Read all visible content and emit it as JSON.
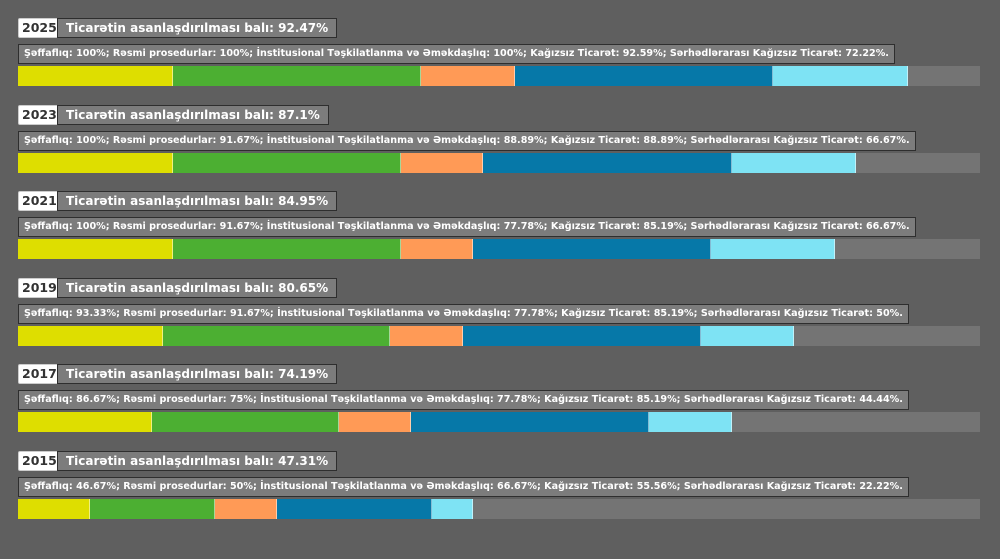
{
  "categories": [
    {
      "name": "Şəffaflıq",
      "weight": 15,
      "color": "#dede00"
    },
    {
      "name": "Rəsmi prosedurlar",
      "weight": 24,
      "color": "#4caf32"
    },
    {
      "name": "İnstitusional Təşkilatlanma və Əməkdaşlıq",
      "weight": 9,
      "color": "#ff9a56"
    },
    {
      "name": "Kağızsız Ticarət",
      "weight": 27,
      "color": "#0678a8"
    },
    {
      "name": "Sərhədlərarası Kağızsız Ticarət",
      "weight": 18,
      "color": "#7ee3f4"
    }
  ],
  "rows": [
    {
      "year": "2025",
      "title": "Ticarətin asanlaşdırılması balı: 92.47%",
      "detail": "Şəffaflıq: 100%; Rəsmi prosedurlar: 100%; İnstitusional Təşkilatlanma və Əməkdaşlıq: 100%; Kağızsız Ticarət: 92.59%; Sərhədlərarası Kağızsız Ticarət: 72.22%.",
      "values": [
        100,
        100,
        100,
        92.59,
        72.22
      ]
    },
    {
      "year": "2023",
      "title": "Ticarətin asanlaşdırılması balı: 87.1%",
      "detail": "Şəffaflıq: 100%; Rəsmi prosedurlar: 91.67%; İnstitusional Təşkilatlanma və Əməkdaşlıq: 88.89%; Kağızsız Ticarət: 88.89%; Sərhədlərarası Kağızsız Ticarət: 66.67%.",
      "values": [
        100,
        91.67,
        88.89,
        88.89,
        66.67
      ]
    },
    {
      "year": "2021",
      "title": "Ticarətin asanlaşdırılması balı: 84.95%",
      "detail": "Şəffaflıq: 100%; Rəsmi prosedurlar: 91.67%; İnstitusional Təşkilatlanma və Əməkdaşlıq: 77.78%; Kağızsız Ticarət: 85.19%; Sərhədlərarası Kağızsız Ticarət: 66.67%.",
      "values": [
        100,
        91.67,
        77.78,
        85.19,
        66.67
      ]
    },
    {
      "year": "2019",
      "title": "Ticarətin asanlaşdırılması balı: 80.65%",
      "detail": "Şəffaflıq: 93.33%; Rəsmi prosedurlar: 91.67%; İnstitusional Təşkilatlanma və Əməkdaşlıq: 77.78%; Kağızsız Ticarət: 85.19%; Sərhədlərarası Kağızsız Ticarət: 50%.",
      "values": [
        93.33,
        91.67,
        77.78,
        85.19,
        50
      ]
    },
    {
      "year": "2017",
      "title": "Ticarətin asanlaşdırılması balı: 74.19%",
      "detail": "Şəffaflıq: 86.67%; Rəsmi prosedurlar: 75%; İnstitusional Təşkilatlanma və Əməkdaşlıq: 77.78%; Kağızsız Ticarət: 85.19%; Sərhədlərarası Kağızsız Ticarət: 44.44%.",
      "values": [
        86.67,
        75,
        77.78,
        85.19,
        44.44
      ]
    },
    {
      "year": "2015",
      "title": "Ticarətin asanlaşdırılması balı: 47.31%",
      "detail": "Şəffaflıq: 46.67%; Rəsmi prosedurlar: 50%; İnstitusional Təşkilatlanma və Əməkdaşlıq: 66.67%; Kağızsız Ticarət: 55.56%; Sərhədlərarası Kağızsız Ticarət: 22.22%.",
      "values": [
        46.67,
        50,
        66.67,
        55.56,
        22.22
      ]
    }
  ]
}
